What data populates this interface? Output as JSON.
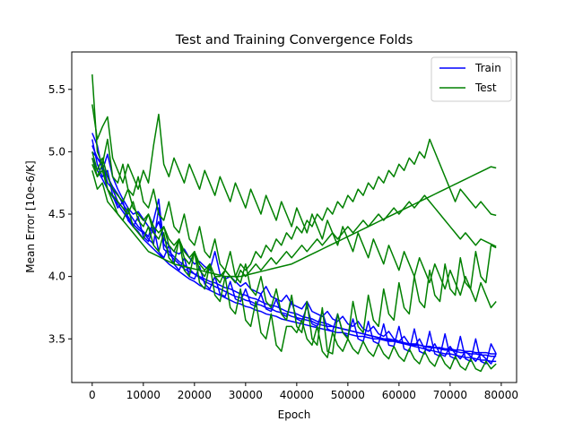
{
  "chart_data": {
    "type": "line",
    "title": "Test and Training Convergence Folds",
    "xlabel": "Epoch",
    "ylabel": "Mean Error [10e-6/K]",
    "xlim": [
      -4000,
      83000
    ],
    "ylim": [
      3.15,
      5.8
    ],
    "xticks": [
      0,
      10000,
      20000,
      30000,
      40000,
      50000,
      60000,
      70000,
      80000
    ],
    "yticks": [
      3.5,
      4.0,
      4.5,
      5.0,
      5.5
    ],
    "grid": false,
    "legend_position": "top-right",
    "legend": [
      {
        "label": "Train",
        "color": "#0000ff"
      },
      {
        "label": "Test",
        "color": "#008000"
      }
    ],
    "x_step": 1000,
    "x_points": 80,
    "series": [
      {
        "group": "Train",
        "color": "#0000ff",
        "values": [
          5.15,
          5.05,
          4.85,
          4.98,
          4.8,
          4.7,
          4.62,
          4.55,
          4.5,
          4.52,
          4.46,
          4.4,
          4.35,
          4.44,
          4.3,
          4.25,
          4.2,
          4.18,
          4.22,
          4.15,
          4.1,
          4.12,
          4.08,
          4.05,
          4.2,
          4.02,
          3.98,
          4.0,
          3.96,
          3.92,
          3.95,
          3.9,
          3.88,
          3.86,
          3.92,
          3.84,
          3.82,
          3.8,
          3.85,
          3.78,
          3.76,
          3.74,
          3.8,
          3.72,
          3.7,
          3.68,
          3.72,
          3.66,
          3.64,
          3.68,
          3.62,
          3.6,
          3.64,
          3.58,
          3.56,
          3.6,
          3.54,
          3.52,
          3.56,
          3.5,
          3.48,
          3.52,
          3.46,
          3.44,
          3.5,
          3.42,
          3.4,
          3.46,
          3.38,
          3.36,
          3.44,
          3.38,
          3.34,
          3.4,
          3.36,
          3.32,
          3.38,
          3.34,
          3.3,
          3.38
        ]
      },
      {
        "group": "Train",
        "color": "#0000ff",
        "values": [
          5.05,
          4.95,
          4.9,
          4.75,
          4.7,
          4.6,
          4.55,
          4.48,
          4.42,
          4.38,
          4.35,
          4.3,
          4.26,
          4.55,
          4.22,
          4.18,
          4.14,
          4.1,
          4.06,
          4.04,
          4.02,
          4.0,
          3.98,
          3.96,
          3.95,
          3.93,
          3.91,
          3.9,
          3.88,
          3.86,
          3.85,
          3.83,
          3.82,
          3.8,
          3.78,
          3.77,
          3.76,
          3.74,
          3.72,
          3.71,
          3.7,
          3.68,
          3.67,
          3.66,
          3.64,
          3.63,
          3.62,
          3.6,
          3.59,
          3.58,
          3.57,
          3.56,
          3.55,
          3.54,
          3.53,
          3.52,
          3.51,
          3.5,
          3.49,
          3.48,
          3.47,
          3.46,
          3.45,
          3.44,
          3.43,
          3.42,
          3.41,
          3.4,
          3.39,
          3.38,
          3.38,
          3.37,
          3.36,
          3.35,
          3.35,
          3.34,
          3.33,
          3.33,
          3.32,
          3.32
        ]
      },
      {
        "group": "Train",
        "color": "#0000ff",
        "values": [
          5.1,
          4.9,
          4.8,
          4.85,
          4.65,
          4.55,
          4.6,
          4.45,
          4.4,
          4.48,
          4.32,
          4.28,
          4.4,
          4.2,
          4.15,
          4.25,
          4.1,
          4.05,
          4.15,
          4.0,
          3.98,
          4.08,
          3.94,
          3.9,
          4.0,
          3.86,
          3.84,
          3.96,
          3.82,
          3.8,
          3.9,
          3.78,
          3.76,
          3.86,
          3.74,
          3.72,
          3.82,
          3.7,
          3.68,
          3.8,
          3.66,
          3.64,
          3.76,
          3.62,
          3.6,
          3.72,
          3.58,
          3.56,
          3.7,
          3.55,
          3.52,
          3.66,
          3.5,
          3.48,
          3.64,
          3.48,
          3.46,
          3.62,
          3.45,
          3.44,
          3.6,
          3.42,
          3.4,
          3.58,
          3.4,
          3.38,
          3.56,
          3.38,
          3.36,
          3.54,
          3.36,
          3.34,
          3.52,
          3.34,
          3.32,
          3.5,
          3.32,
          3.3,
          3.46,
          3.38
        ]
      },
      {
        "group": "Train",
        "color": "#0000ff",
        "values": [
          5.0,
          4.95,
          4.88,
          4.8,
          4.72,
          4.66,
          4.58,
          4.52,
          4.46,
          4.4,
          4.36,
          4.32,
          4.45,
          4.62,
          4.26,
          4.2,
          4.16,
          4.12,
          4.09,
          4.06,
          4.02,
          3.99,
          3.96,
          3.94,
          3.92,
          3.9,
          3.88,
          3.86,
          3.84,
          3.83,
          3.81,
          3.8,
          3.78,
          3.77,
          3.75,
          3.74,
          3.72,
          3.71,
          3.7,
          3.68,
          3.67,
          3.66,
          3.65,
          3.64,
          3.62,
          3.61,
          3.6,
          3.6,
          3.59,
          3.58,
          3.57,
          3.56,
          3.55,
          3.54,
          3.53,
          3.52,
          3.51,
          3.5,
          3.5,
          3.49,
          3.48,
          3.47,
          3.46,
          3.46,
          3.45,
          3.44,
          3.43,
          3.43,
          3.42,
          3.41,
          3.41,
          3.4,
          3.39,
          3.39,
          3.38,
          3.38,
          3.37,
          3.37,
          3.36,
          3.36
        ]
      },
      {
        "group": "Train",
        "color": "#0000ff",
        "values": [
          4.95,
          4.85,
          4.78,
          4.7,
          4.64,
          4.58,
          4.52,
          4.46,
          4.4,
          4.36,
          4.3,
          4.26,
          4.22,
          4.18,
          4.14,
          4.1,
          4.07,
          4.04,
          4.01,
          3.98,
          3.96,
          3.93,
          3.91,
          3.89,
          3.87,
          3.85,
          3.83,
          3.81,
          3.79,
          3.78,
          3.76,
          3.75,
          3.73,
          3.72,
          3.7,
          3.69,
          3.68,
          3.66,
          3.65,
          3.64,
          3.63,
          3.62,
          3.61,
          3.6,
          3.59,
          3.58,
          3.57,
          3.56,
          3.55,
          3.55,
          3.54,
          3.53,
          3.52,
          3.52,
          3.51,
          3.5,
          3.5,
          3.49,
          3.48,
          3.48,
          3.47,
          3.46,
          3.46,
          3.45,
          3.45,
          3.44,
          3.44,
          3.43,
          3.43,
          3.42,
          3.42,
          3.41,
          3.41,
          3.4,
          3.4,
          3.39,
          3.39,
          3.39,
          3.38,
          3.38
        ]
      },
      {
        "group": "Test",
        "color": "#008000",
        "values": [
          5.62,
          5.0,
          4.9,
          5.1,
          4.8,
          4.75,
          4.9,
          4.7,
          4.65,
          4.8,
          4.6,
          4.55,
          4.7,
          4.5,
          4.45,
          4.6,
          4.4,
          4.35,
          4.5,
          4.3,
          4.25,
          4.4,
          4.2,
          4.15,
          4.3,
          4.1,
          4.05,
          4.2,
          4.0,
          3.95,
          4.1,
          3.9,
          3.85,
          4.0,
          3.8,
          3.75,
          3.9,
          3.7,
          3.65,
          3.85,
          3.6,
          3.55,
          3.8,
          3.5,
          3.45,
          3.75,
          3.4,
          3.38,
          3.7,
          3.55,
          3.5,
          3.8,
          3.6,
          3.55,
          3.85,
          3.65,
          3.6,
          3.9,
          3.7,
          3.65,
          3.95,
          3.75,
          3.7,
          4.0,
          3.8,
          3.75,
          4.05,
          3.85,
          3.8,
          4.1,
          3.9,
          3.85,
          4.15,
          3.95,
          3.9,
          4.2,
          4.0,
          3.95,
          4.25,
          4.23
        ]
      },
      {
        "group": "Test",
        "color": "#008000",
        "values": [
          5.38,
          5.1,
          5.2,
          5.28,
          4.95,
          4.85,
          4.75,
          4.9,
          4.8,
          4.7,
          4.85,
          4.75,
          5.05,
          5.3,
          4.9,
          4.8,
          4.95,
          4.85,
          4.75,
          4.9,
          4.8,
          4.7,
          4.85,
          4.75,
          4.65,
          4.8,
          4.7,
          4.6,
          4.75,
          4.65,
          4.55,
          4.7,
          4.6,
          4.5,
          4.65,
          4.55,
          4.45,
          4.6,
          4.5,
          4.4,
          4.55,
          4.45,
          4.35,
          4.5,
          4.4,
          4.3,
          4.45,
          4.35,
          4.25,
          4.4,
          4.3,
          4.2,
          4.35,
          4.25,
          4.15,
          4.3,
          4.2,
          4.1,
          4.25,
          4.15,
          4.05,
          4.2,
          4.1,
          4.0,
          4.15,
          4.05,
          3.95,
          4.1,
          4.0,
          3.9,
          4.05,
          3.95,
          3.85,
          4.0,
          3.9,
          3.8,
          3.95,
          3.85,
          3.75,
          3.8
        ]
      },
      {
        "group": "Test",
        "color": "#008000",
        "values": [
          4.9,
          4.8,
          4.9,
          4.7,
          4.6,
          4.5,
          4.45,
          4.4,
          4.35,
          4.3,
          4.25,
          4.2,
          4.18,
          4.16,
          4.14,
          4.12,
          4.1,
          4.09,
          4.08,
          4.07,
          4.06,
          4.05,
          4.04,
          4.03,
          4.02,
          4.01,
          4.0,
          4.0,
          4.0,
          4.0,
          4.01,
          4.02,
          4.03,
          4.04,
          4.05,
          4.06,
          4.07,
          4.08,
          4.09,
          4.1,
          4.12,
          4.14,
          4.16,
          4.18,
          4.2,
          4.22,
          4.24,
          4.26,
          4.28,
          4.3,
          4.32,
          4.34,
          4.36,
          4.38,
          4.4,
          4.42,
          4.44,
          4.46,
          4.48,
          4.5,
          4.52,
          4.54,
          4.56,
          4.58,
          4.6,
          4.62,
          4.64,
          4.66,
          4.68,
          4.7,
          4.72,
          4.74,
          4.76,
          4.78,
          4.8,
          4.82,
          4.84,
          4.86,
          4.88,
          4.87
        ]
      },
      {
        "group": "Test",
        "color": "#008000",
        "values": [
          4.85,
          4.7,
          4.75,
          4.6,
          4.55,
          4.5,
          4.45,
          4.55,
          4.4,
          4.35,
          4.3,
          4.4,
          4.25,
          4.2,
          4.35,
          4.15,
          4.1,
          4.3,
          4.05,
          4.0,
          4.2,
          3.95,
          3.9,
          4.1,
          3.85,
          3.8,
          4.0,
          3.75,
          3.7,
          3.9,
          3.65,
          3.6,
          3.8,
          3.55,
          3.5,
          3.7,
          3.45,
          3.4,
          3.6,
          3.6,
          3.55,
          3.65,
          3.5,
          3.45,
          3.6,
          3.4,
          3.35,
          3.55,
          3.45,
          3.4,
          3.5,
          3.42,
          3.38,
          3.48,
          3.4,
          3.36,
          3.46,
          3.38,
          3.34,
          3.44,
          3.36,
          3.32,
          3.42,
          3.34,
          3.3,
          3.4,
          3.32,
          3.28,
          3.38,
          3.3,
          3.26,
          3.36,
          3.28,
          3.25,
          3.34,
          3.26,
          3.24,
          3.32,
          3.26,
          3.3
        ]
      },
      {
        "group": "Test",
        "color": "#008000",
        "values": [
          5.0,
          4.85,
          4.95,
          4.8,
          4.7,
          4.65,
          4.6,
          4.7,
          4.55,
          4.5,
          4.45,
          4.5,
          4.4,
          4.35,
          4.4,
          4.3,
          4.25,
          4.3,
          4.2,
          4.15,
          4.2,
          4.1,
          4.05,
          4.1,
          4.0,
          4.0,
          4.05,
          4.0,
          4.0,
          4.1,
          4.05,
          4.1,
          4.2,
          4.15,
          4.25,
          4.2,
          4.3,
          4.25,
          4.35,
          4.3,
          4.4,
          4.35,
          4.45,
          4.4,
          4.5,
          4.45,
          4.55,
          4.5,
          4.6,
          4.55,
          4.65,
          4.6,
          4.7,
          4.65,
          4.75,
          4.7,
          4.8,
          4.75,
          4.85,
          4.8,
          4.9,
          4.85,
          4.95,
          4.9,
          5.0,
          4.95,
          5.1,
          5.0,
          4.9,
          4.8,
          4.7,
          4.6,
          4.7,
          4.65,
          4.6,
          4.55,
          4.6,
          4.55,
          4.5,
          4.49
        ]
      },
      {
        "group": "Test",
        "color": "#008000",
        "values": [
          4.95,
          4.8,
          4.85,
          4.7,
          4.65,
          4.6,
          4.55,
          4.5,
          4.6,
          4.45,
          4.4,
          4.5,
          4.35,
          4.3,
          4.4,
          4.25,
          4.2,
          4.3,
          4.15,
          4.1,
          4.2,
          4.05,
          4.0,
          4.1,
          4.0,
          3.95,
          4.05,
          4.0,
          3.95,
          4.05,
          4.0,
          4.05,
          4.1,
          4.05,
          4.1,
          4.15,
          4.1,
          4.15,
          4.2,
          4.15,
          4.2,
          4.25,
          4.2,
          4.25,
          4.3,
          4.25,
          4.3,
          4.35,
          4.3,
          4.35,
          4.4,
          4.35,
          4.4,
          4.45,
          4.4,
          4.45,
          4.5,
          4.45,
          4.5,
          4.55,
          4.5,
          4.55,
          4.6,
          4.55,
          4.6,
          4.65,
          4.6,
          4.55,
          4.5,
          4.45,
          4.4,
          4.35,
          4.3,
          4.35,
          4.3,
          4.25,
          4.3,
          4.28,
          4.26,
          4.24
        ]
      }
    ]
  }
}
